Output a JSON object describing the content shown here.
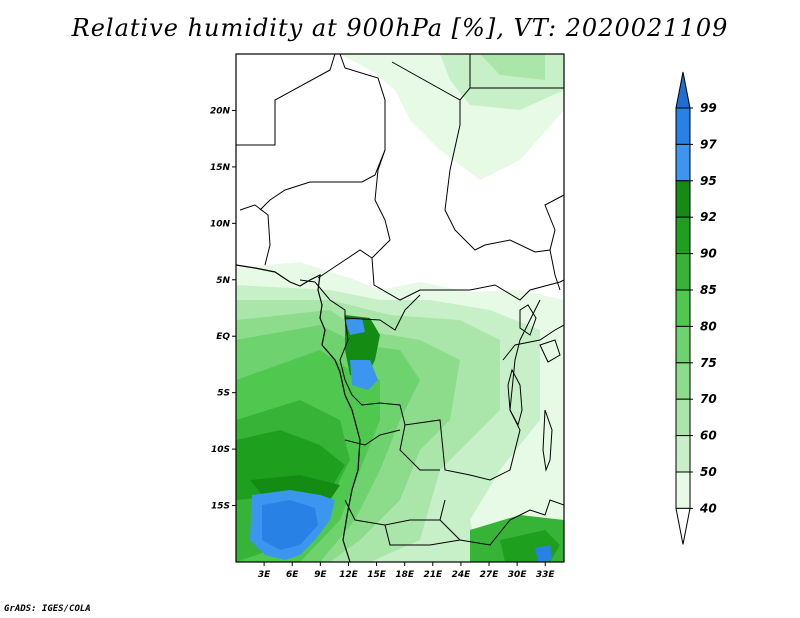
{
  "title": "Relative humidity at 900hPa [%], VT: 2020021109",
  "credit": "GrADS: IGES/COLA",
  "map": {
    "lat_labels": [
      "20N",
      "15N",
      "10N",
      "5N",
      "EQ",
      "5S",
      "10S",
      "15S"
    ],
    "lon_labels": [
      "3E",
      "6E",
      "9E",
      "12E",
      "15E",
      "18E",
      "21E",
      "24E",
      "27E",
      "30E",
      "33E"
    ],
    "lat_range": [
      -20,
      25
    ],
    "lon_range": [
      0,
      35
    ],
    "projection": "lat-lon"
  },
  "colorbar": {
    "levels": [
      "99",
      "97",
      "95",
      "92",
      "90",
      "85",
      "80",
      "75",
      "70",
      "60",
      "50",
      "40"
    ],
    "colors": {
      "above_99": "#1e6ed2",
      "97_99": "#2882e6",
      "95_97": "#3c96f0",
      "92_95": "#148c14",
      "90_92": "#1ea01e",
      "85_90": "#37b437",
      "80_85": "#50c850",
      "75_80": "#6ed26e",
      "70_75": "#8cdc8c",
      "60_70": "#aae6aa",
      "50_60": "#c8f0c8",
      "40_50": "#e6fae6",
      "below_40": "#ffffff"
    }
  }
}
